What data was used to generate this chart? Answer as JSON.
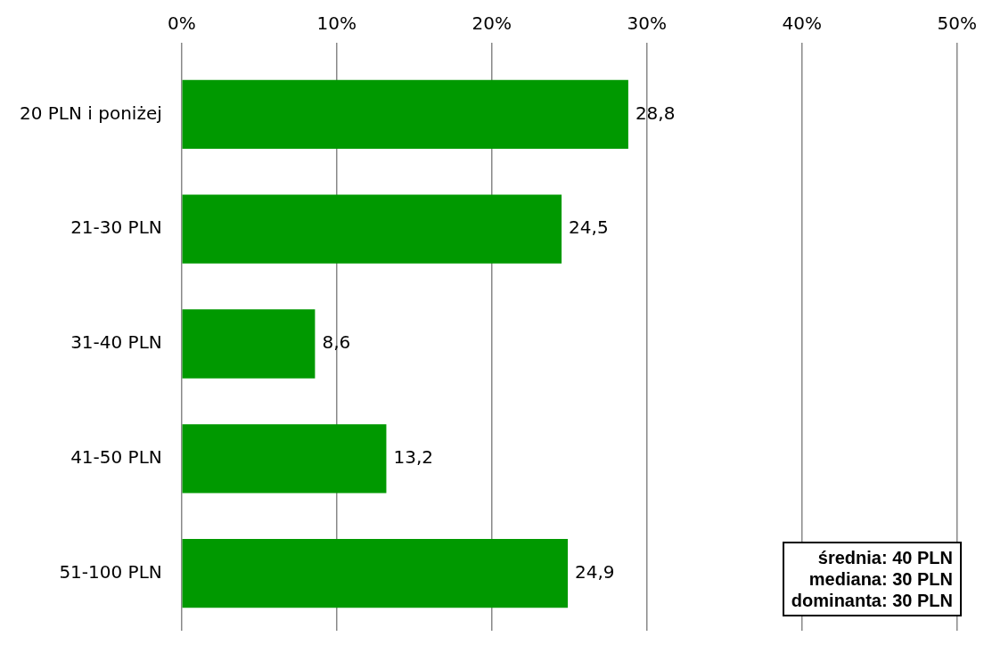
{
  "chart_data": {
    "type": "bar",
    "orientation": "horizontal",
    "categories": [
      "20 PLN i poniżej",
      "21-30 PLN",
      "31-40 PLN",
      "41-50 PLN",
      "51-100 PLN"
    ],
    "values": [
      28.8,
      24.5,
      8.6,
      13.2,
      24.9
    ],
    "value_labels": [
      "28,8",
      "24,5",
      "8,6",
      "13,2",
      "24,9"
    ],
    "color": "#009900",
    "xlim": [
      0,
      50
    ],
    "xticks": [
      {
        "value": 0,
        "label": "0%"
      },
      {
        "value": 10,
        "label": "10%"
      },
      {
        "value": 20,
        "label": "20%"
      },
      {
        "value": 30,
        "label": "30%"
      },
      {
        "value": 40,
        "label": "40%"
      },
      {
        "value": 50,
        "label": "50%"
      }
    ],
    "grid": "x",
    "legend": false,
    "annotations": [
      "średnia: 40 PLN",
      "mediana: 30 PLN",
      "dominanta: 30 PLN"
    ]
  }
}
